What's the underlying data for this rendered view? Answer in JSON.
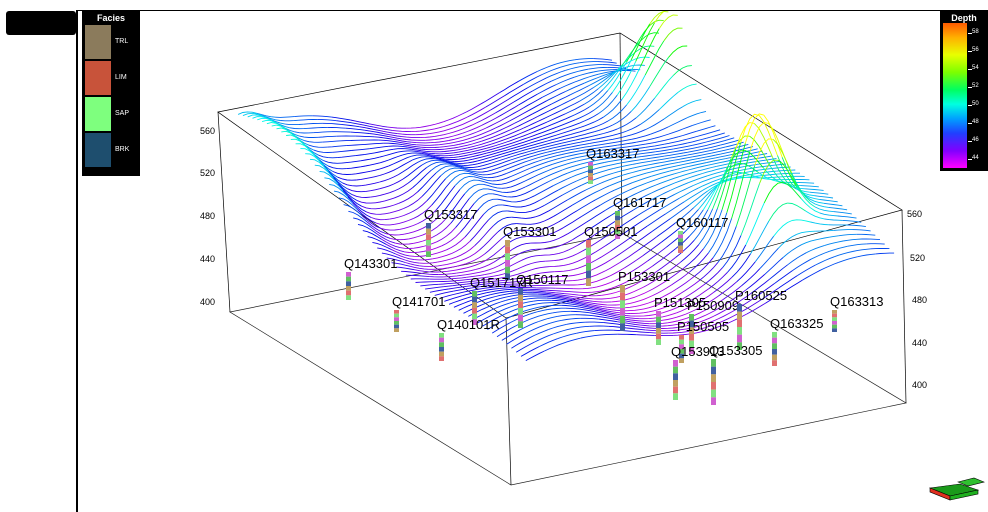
{
  "facies_legend": {
    "title": "Facies",
    "items": [
      {
        "label": "TRL",
        "color": "#8b7b5c"
      },
      {
        "label": "LIM",
        "color": "#c8533a"
      },
      {
        "label": "SAP",
        "color": "#7eff7e"
      },
      {
        "label": "BRK",
        "color": "#1e4e6e"
      }
    ]
  },
  "depth_legend": {
    "title": "Depth",
    "tick_labels": [
      "58",
      "56",
      "54",
      "52",
      "50",
      "48",
      "46",
      "44"
    ]
  },
  "left_axis": {
    "ticks": [
      "560",
      "520",
      "480",
      "440",
      "400"
    ]
  },
  "right_axis": {
    "ticks": [
      "560",
      "520",
      "480",
      "440",
      "400"
    ]
  },
  "wells": [
    {
      "name": "Q163317"
    },
    {
      "name": "Q161717"
    },
    {
      "name": "Q153317"
    },
    {
      "name": "Q153301"
    },
    {
      "name": "Q150501"
    },
    {
      "name": "Q160117"
    },
    {
      "name": "Q143301"
    },
    {
      "name": "Q151717R"
    },
    {
      "name": "Q150117"
    },
    {
      "name": "P153301"
    },
    {
      "name": "Q141701"
    },
    {
      "name": "Q140101R"
    },
    {
      "name": "P151305"
    },
    {
      "name": "P150909"
    },
    {
      "name": "P160525"
    },
    {
      "name": "Q163313"
    },
    {
      "name": "P150505"
    },
    {
      "name": "Q163325"
    },
    {
      "name": "Q153913"
    },
    {
      "name": "Q153305"
    }
  ],
  "colors": {
    "background": "#ffffff",
    "frame": "#000000"
  }
}
